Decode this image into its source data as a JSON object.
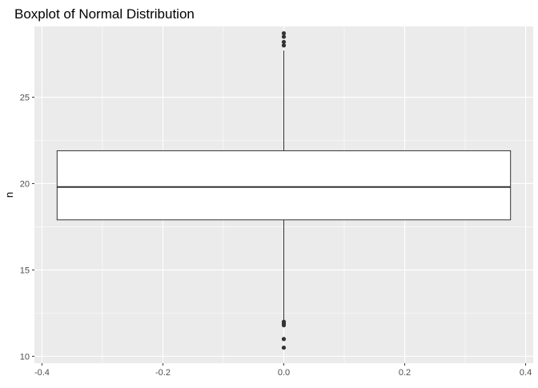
{
  "chart_data": {
    "type": "boxplot",
    "title": "Boxplot of Normal Distribution",
    "xlabel": "",
    "ylabel": "n",
    "x_ticks": [
      -0.4,
      -0.2,
      0.0,
      0.2,
      0.4
    ],
    "x_tick_labels": [
      "-0.4",
      "-0.2",
      "0.0",
      "0.2",
      "0.4"
    ],
    "y_ticks": [
      10,
      15,
      20,
      25
    ],
    "y_tick_labels": [
      "10",
      "15",
      "20",
      "25"
    ],
    "xlim": [
      -0.4125,
      0.4125
    ],
    "ylim": [
      9.6,
      29.1
    ],
    "grid": true,
    "box": {
      "x_center": 0.0,
      "x_left": -0.375,
      "x_right": 0.375,
      "lower_whisker": 12.1,
      "q1": 17.9,
      "median": 19.8,
      "q3": 21.9,
      "upper_whisker": 27.7
    },
    "outliers": [
      28.7,
      28.5,
      28.2,
      28.0,
      12.0,
      11.9,
      11.8,
      11.0,
      10.5
    ],
    "colors": {
      "panel_background": "#ebebeb",
      "grid_line": "#ffffff",
      "box_fill": "#ffffff",
      "box_stroke": "#333333",
      "outlier": "#333333"
    }
  }
}
